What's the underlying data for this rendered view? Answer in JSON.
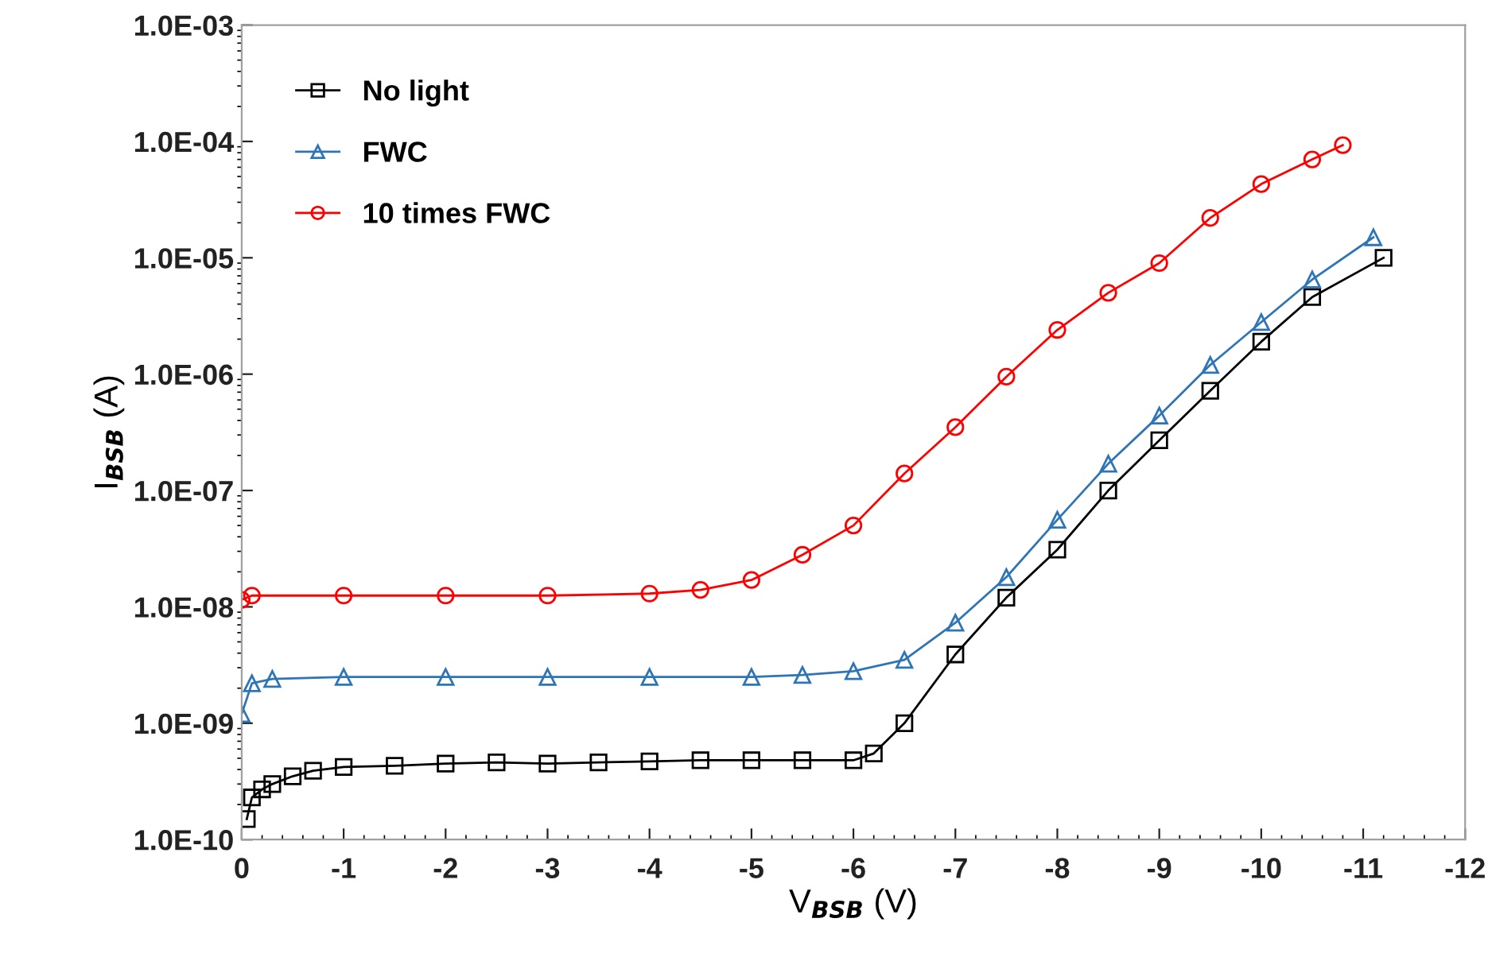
{
  "chart_data": {
    "type": "line",
    "xlabel": "V$_{BSB}$ (V)",
    "ylabel": "I$_{BSB}$ (A)",
    "log": "y",
    "xlim": [
      0,
      -12
    ],
    "xticks": [
      0,
      -1,
      -2,
      -3,
      -4,
      -5,
      -6,
      -7,
      -8,
      -9,
      -10,
      -11,
      -12
    ],
    "ylim": [
      1e-10,
      0.001
    ],
    "yticks": [
      {
        "value": 1e-10,
        "label": "1.0E-10"
      },
      {
        "value": 1e-09,
        "label": "1.0E-09"
      },
      {
        "value": 1e-08,
        "label": "1.0E-08"
      },
      {
        "value": 1e-07,
        "label": "1.0E-07"
      },
      {
        "value": 1e-06,
        "label": "1.0E-06"
      },
      {
        "value": 1e-05,
        "label": "1.0E-05"
      },
      {
        "value": 0.0001,
        "label": "1.0E-04"
      },
      {
        "value": 0.001,
        "label": "1.0E-03"
      }
    ],
    "grid": false,
    "legend": "top left",
    "line_style": "solid",
    "series": [
      {
        "name": "No light",
        "color": "#000000",
        "marker": "square",
        "x": [
          -0.05,
          -0.1,
          -0.2,
          -0.3,
          -0.5,
          -0.7,
          -1,
          -1.5,
          -2,
          -2.5,
          -3,
          -3.5,
          -4,
          -4.5,
          -5,
          -5.5,
          -6,
          -6.2,
          -6.5,
          -7,
          -7.5,
          -8,
          -8.5,
          -9,
          -9.5,
          -10,
          -10.5,
          -11.2
        ],
        "values": [
          1.5e-10,
          2.3e-10,
          2.7e-10,
          3e-10,
          3.5e-10,
          3.9e-10,
          4.2e-10,
          4.3e-10,
          4.5e-10,
          4.6e-10,
          4.5e-10,
          4.6e-10,
          4.7e-10,
          4.8e-10,
          4.8e-10,
          4.8e-10,
          4.8e-10,
          5.5e-10,
          1e-09,
          3.9e-09,
          1.2e-08,
          3.1e-08,
          1e-07,
          2.7e-07,
          7.2e-07,
          1.9e-06,
          4.6e-06,
          1e-05
        ]
      },
      {
        "name": "FWC",
        "color": "#2e75b6",
        "marker": "triangle",
        "x": [
          0,
          -0.1,
          -0.3,
          -1,
          -2,
          -3,
          -4,
          -5,
          -5.5,
          -6,
          -6.5,
          -7,
          -7.5,
          -8,
          -8.5,
          -9,
          -9.5,
          -10,
          -10.5,
          -11.1
        ],
        "values": [
          1.2e-09,
          2.2e-09,
          2.4e-09,
          2.5e-09,
          2.5e-09,
          2.5e-09,
          2.5e-09,
          2.5e-09,
          2.6e-09,
          2.8e-09,
          3.5e-09,
          7.3e-09,
          1.8e-08,
          5.6e-08,
          1.7e-07,
          4.4e-07,
          1.2e-06,
          2.8e-06,
          6.5e-06,
          1.5e-05
        ]
      },
      {
        "name": "10 times FWC",
        "color": "#ff0000",
        "marker": "circle",
        "x": [
          0,
          -0.1,
          -1,
          -2,
          -3,
          -4,
          -4.5,
          -5,
          -5.5,
          -6,
          -6.5,
          -7,
          -7.5,
          -8,
          -8.5,
          -9,
          -9.5,
          -10,
          -10.5,
          -10.8
        ],
        "values": [
          1.15e-08,
          1.25e-08,
          1.25e-08,
          1.25e-08,
          1.25e-08,
          1.3e-08,
          1.4e-08,
          1.7e-08,
          2.8e-08,
          5e-08,
          1.4e-07,
          3.5e-07,
          9.5e-07,
          2.4e-06,
          5e-06,
          9e-06,
          2.2e-05,
          4.3e-05,
          7e-05,
          9.3e-05
        ]
      }
    ]
  }
}
